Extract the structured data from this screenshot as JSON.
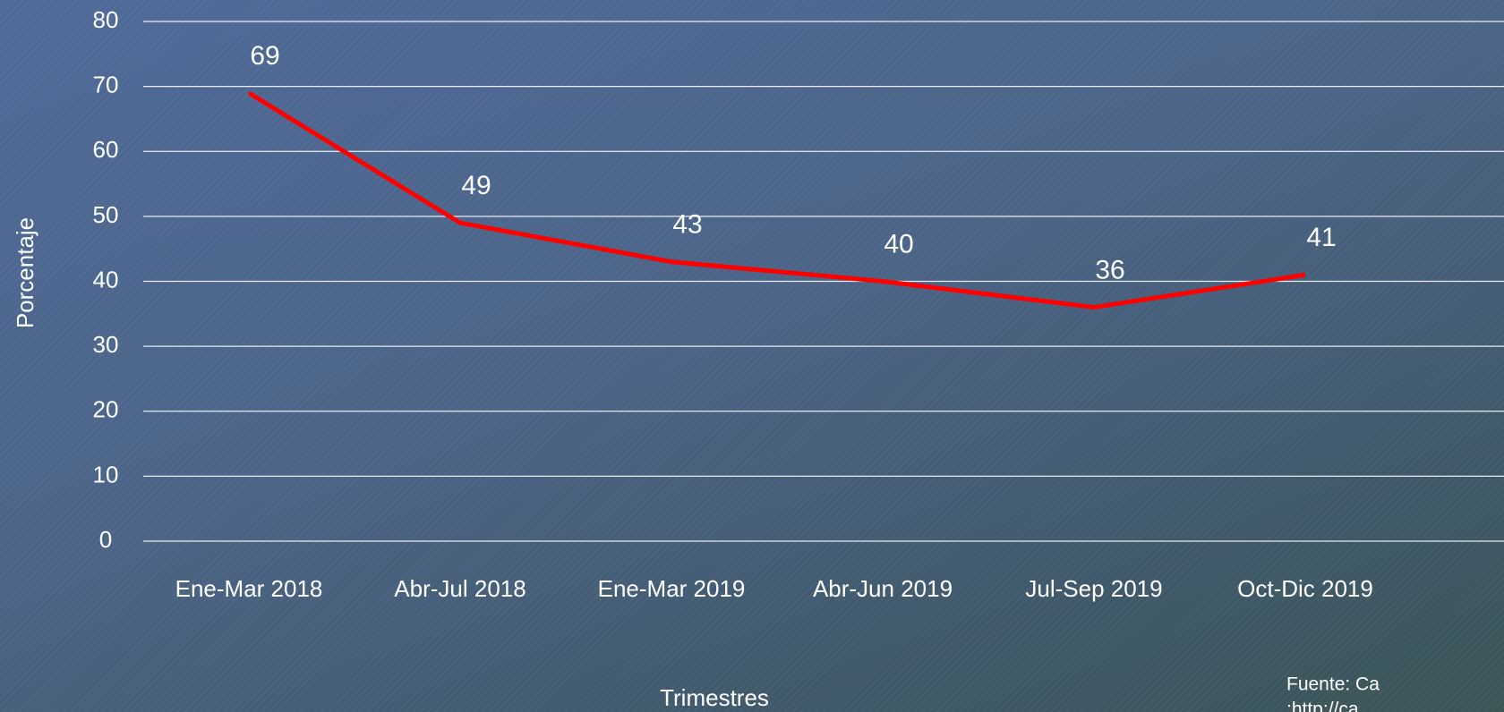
{
  "chart_data": {
    "type": "line",
    "categories": [
      "Ene-Mar 2018",
      "Abr-Jul 2018",
      "Ene-Mar 2019",
      "Abr-Jun 2019",
      "Jul-Sep 2019",
      "Oct-Dic 2019"
    ],
    "series": [
      {
        "name": "Porcentaje",
        "color": "#ff0000",
        "values": [
          69,
          49,
          43,
          40,
          36,
          41
        ]
      }
    ],
    "ylim": [
      0,
      80
    ],
    "yticks": [
      0,
      10,
      20,
      30,
      40,
      50,
      60,
      70,
      80
    ],
    "grid": true,
    "ylabel": "Porcentaje",
    "xlabel": "Trimestres",
    "source": [
      "Fuente: Ca",
      ":http://ca"
    ]
  }
}
